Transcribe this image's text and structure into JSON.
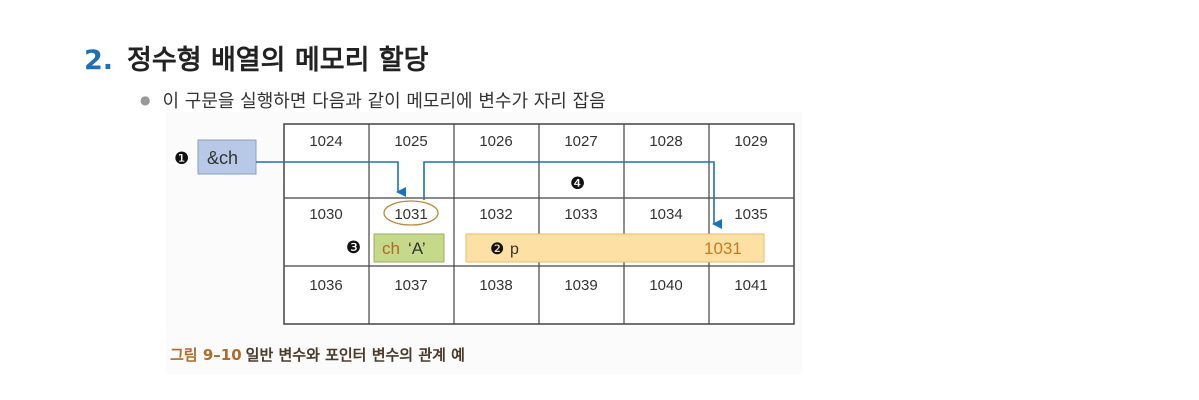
{
  "heading": {
    "number": "2.",
    "title": "정수형 배열의 메모리 할당"
  },
  "bullet": "이 구문을 실행하면 다음과 같이 메모리에 변수가 자리 잡음",
  "grid": {
    "rows": [
      [
        "1024",
        "1025",
        "1026",
        "1027",
        "1028",
        "1029"
      ],
      [
        "1030",
        "1031",
        "1032",
        "1033",
        "1034",
        "1035"
      ],
      [
        "1036",
        "1037",
        "1038",
        "1039",
        "1040",
        "1041"
      ]
    ]
  },
  "labels": {
    "marker1": "❶",
    "addr_box": "&ch",
    "marker2": "❷",
    "pointer_name": "p",
    "pointer_value": "1031",
    "marker3": "❸",
    "ch_name": "ch",
    "ch_value": "‘A’",
    "marker4": "❹"
  },
  "caption": {
    "figure": "그림 9–10",
    "text": "일반 변수와 포인터 변수의 관계 예"
  },
  "colors": {
    "accent": "#1f6fb7",
    "arrow": "#1a73b8",
    "addr_box": "#b7c9e6",
    "ch_box": "#c6d88a",
    "p_box": "#fde0a3",
    "p_value": "#c87a1e"
  }
}
